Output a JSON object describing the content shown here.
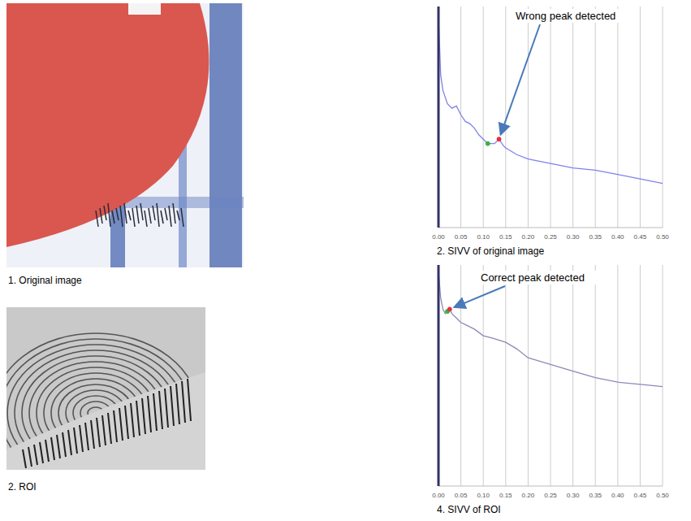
{
  "images": [
    {
      "caption": "1. Original image"
    },
    {
      "caption": "2. ROI"
    }
  ],
  "chart_data": [
    {
      "type": "line",
      "title": "2. SIVV of original image",
      "x": [
        0,
        0.005,
        0.01,
        0.02,
        0.03,
        0.04,
        0.05,
        0.06,
        0.07,
        0.08,
        0.09,
        0.1,
        0.11,
        0.125,
        0.135,
        0.145,
        0.15,
        0.175,
        0.2,
        0.25,
        0.3,
        0.35,
        0.4,
        0.45,
        0.5
      ],
      "values": [
        0.95,
        0.69,
        0.62,
        0.56,
        0.54,
        0.55,
        0.51,
        0.48,
        0.47,
        0.45,
        0.42,
        0.4,
        0.38,
        0.38,
        0.4,
        0.37,
        0.36,
        0.33,
        0.31,
        0.29,
        0.27,
        0.26,
        0.24,
        0.22,
        0.2
      ],
      "color": "#8080ee",
      "xlim": [
        0,
        0.5
      ],
      "xticks": [
        {
          "value": 0,
          "label": "0.00"
        },
        {
          "value": 0.05,
          "label": "0.05"
        },
        {
          "value": 0.1,
          "label": "0.10"
        },
        {
          "value": 0.15,
          "label": "0.15"
        },
        {
          "value": 0.2,
          "label": "0.20"
        },
        {
          "value": 0.25,
          "label": "0.25"
        },
        {
          "value": 0.3,
          "label": "0.30"
        },
        {
          "value": 0.35,
          "label": "0.35"
        },
        {
          "value": 0.4,
          "label": "0.40"
        },
        {
          "value": 0.45,
          "label": "0.45"
        },
        {
          "value": 0.5,
          "label": "0.50"
        }
      ],
      "ylim": [
        0,
        1
      ],
      "tick_labels": "x",
      "grid": true,
      "markers": [
        {
          "x": 0.11,
          "y": 0.38,
          "color": "#3cb043"
        },
        {
          "x": 0.135,
          "y": 0.4,
          "color": "#e8303a"
        }
      ],
      "annotations": [
        {
          "text": "Wrong peak detected",
          "x": 0.135,
          "y": 0.4
        }
      ]
    },
    {
      "type": "line",
      "title": "4. SIVV of ROI",
      "x": [
        0,
        0.005,
        0.01,
        0.015,
        0.02,
        0.025,
        0.03,
        0.04,
        0.05,
        0.06,
        0.07,
        0.08,
        0.1,
        0.12,
        0.15,
        0.175,
        0.2,
        0.25,
        0.3,
        0.35,
        0.4,
        0.45,
        0.5
      ],
      "values": [
        0.97,
        0.85,
        0.8,
        0.78,
        0.79,
        0.8,
        0.78,
        0.76,
        0.74,
        0.73,
        0.72,
        0.71,
        0.68,
        0.67,
        0.65,
        0.62,
        0.58,
        0.55,
        0.52,
        0.49,
        0.47,
        0.46,
        0.45
      ],
      "color": "#8a8ab8",
      "xlim": [
        0,
        0.5
      ],
      "xticks": [
        {
          "value": 0,
          "label": "0.00"
        },
        {
          "value": 0.05,
          "label": "0.05"
        },
        {
          "value": 0.1,
          "label": "0.10"
        },
        {
          "value": 0.15,
          "label": "0.15"
        },
        {
          "value": 0.2,
          "label": "0.20"
        },
        {
          "value": 0.25,
          "label": "0.25"
        },
        {
          "value": 0.3,
          "label": "0.30"
        },
        {
          "value": 0.35,
          "label": "0.35"
        },
        {
          "value": 0.4,
          "label": "0.40"
        },
        {
          "value": 0.45,
          "label": "0.45"
        },
        {
          "value": 0.5,
          "label": "0.50"
        }
      ],
      "ylim": [
        0,
        1
      ],
      "tick_labels": "x",
      "grid": true,
      "markers": [
        {
          "x": 0.02,
          "y": 0.79,
          "color": "#3cb043"
        },
        {
          "x": 0.025,
          "y": 0.8,
          "color": "#e8303a"
        }
      ],
      "annotations": [
        {
          "text": "Correct peak detected",
          "x": 0.025,
          "y": 0.8
        }
      ]
    }
  ]
}
